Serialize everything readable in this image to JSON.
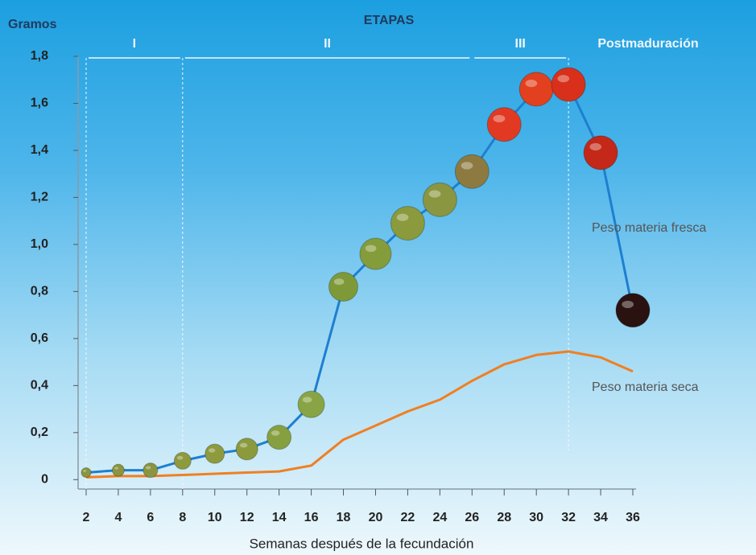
{
  "chart_data": {
    "type": "line",
    "title": "ETAPAS",
    "y_label": "Gramos",
    "x_label": "Semanas después de la fecundación",
    "stages": [
      {
        "label": "I",
        "from": 2,
        "to": 8
      },
      {
        "label": "II",
        "from": 8,
        "to": 26
      },
      {
        "label": "III",
        "from": 26,
        "to": 32
      }
    ],
    "post_label": "Postmaduración",
    "x": [
      2,
      4,
      6,
      8,
      10,
      12,
      14,
      16,
      18,
      20,
      22,
      24,
      26,
      28,
      30,
      32,
      34,
      36
    ],
    "series": [
      {
        "name": "Peso  materia fresca",
        "color": "#1e7fd0",
        "values": [
          0.03,
          0.04,
          0.04,
          0.08,
          0.11,
          0.13,
          0.18,
          0.32,
          0.82,
          0.96,
          1.09,
          1.19,
          1.31,
          1.51,
          1.66,
          1.68,
          1.39,
          0.72
        ],
        "marker_colors": [
          "#8b9440",
          "#8b9440",
          "#8b9440",
          "#8e9a3e",
          "#8e9a3e",
          "#8a9a3c",
          "#86a040",
          "#88a444",
          "#7e9a38",
          "#849c3a",
          "#8a9a3c",
          "#8a9640",
          "#8c7a40",
          "#e23a22",
          "#e2401e",
          "#d8301a",
          "#c42818",
          "#2a1210"
        ]
      },
      {
        "name": "Peso  materia seca",
        "color": "#f07f22",
        "values": [
          0.01,
          0.015,
          0.015,
          0.02,
          0.025,
          0.03,
          0.035,
          0.06,
          0.17,
          0.23,
          0.29,
          0.34,
          0.42,
          0.49,
          0.53,
          0.545,
          0.52,
          0.46
        ]
      }
    ],
    "xlim": [
      1.5,
      36.2
    ],
    "ylim": [
      -0.04,
      1.8
    ],
    "xticks": [
      2,
      4,
      6,
      8,
      10,
      12,
      14,
      16,
      18,
      20,
      22,
      24,
      26,
      28,
      30,
      32,
      34,
      36
    ],
    "yticks": [
      0,
      {
        "value": 0.2,
        "label": "0,2"
      },
      {
        "value": 0.4,
        "label": "0,4"
      },
      {
        "value": 0.6,
        "label": "0,6"
      },
      {
        "value": 0.8,
        "label": "0,8"
      },
      {
        "value": 1.0,
        "label": "1,0"
      },
      {
        "value": 1.2,
        "label": "1,2"
      },
      {
        "value": 1.4,
        "label": "1,4"
      },
      {
        "value": 1.6,
        "label": "1,6"
      },
      {
        "value": 1.8,
        "label": "1,8"
      }
    ]
  }
}
